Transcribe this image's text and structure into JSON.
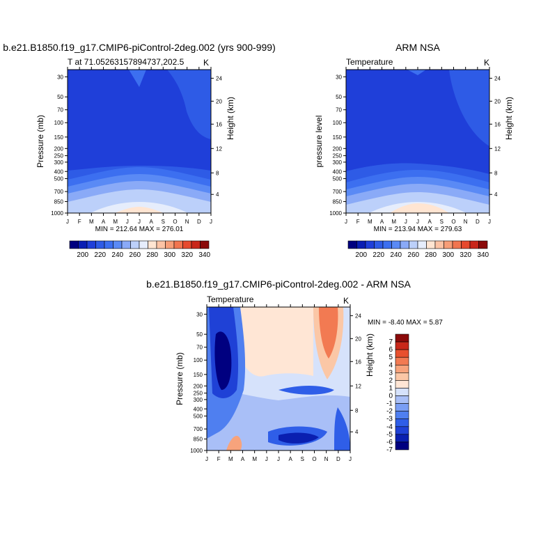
{
  "colors": {
    "abs_scale": [
      "#00007f",
      "#0a1eb3",
      "#1f3fd9",
      "#2e5be6",
      "#3c6ff0",
      "#5a8af5",
      "#8aaaf7",
      "#bcd0fa",
      "#e6edfc",
      "#ffe5d2",
      "#fcc3a5",
      "#f79e78",
      "#f17550",
      "#e64a2e",
      "#c9261a",
      "#8b0a0a"
    ],
    "diff_scale": [
      "#000080",
      "#0a1fb0",
      "#1f41d6",
      "#2f5ee8",
      "#4f7ff0",
      "#7a9ef4",
      "#a9bff7",
      "#d6e2fb",
      "#ffe6d5",
      "#fbc7a6",
      "#f7a37c",
      "#f27a52",
      "#e8502e",
      "#c9281a",
      "#8b0a0a"
    ]
  },
  "chart_data": [
    {
      "type": "heatmap",
      "name": "model",
      "title": "b.e21.B1850.f19_g17.CMIP6-piControl-2deg.002 (yrs 900-999)",
      "left_label": "T at 71.05263157894737,202.5",
      "right_label": "K",
      "ylabel": "Pressure (mb)",
      "ylabel_right": "Height (km)",
      "x_ticks": [
        "J",
        "F",
        "M",
        "A",
        "M",
        "J",
        "J",
        "A",
        "S",
        "O",
        "N",
        "D",
        "J"
      ],
      "y_ticks": [
        "30",
        "50",
        "70",
        "100",
        "150",
        "200",
        "250",
        "300",
        "400",
        "500",
        "700",
        "850",
        "1000"
      ],
      "y_right_ticks": [
        "24",
        "20",
        "16",
        "12",
        "8",
        "4"
      ],
      "stat_text": "MIN = 212.64 MAX = 276.01",
      "colorbar_ticks": [
        "200",
        "220",
        "240",
        "260",
        "280",
        "300",
        "320",
        "340"
      ]
    },
    {
      "type": "heatmap",
      "name": "obs",
      "title": "ARM NSA",
      "left_label": "Temperature",
      "right_label": "K",
      "ylabel": "pressure level",
      "ylabel_right": "Height (km)",
      "x_ticks": [
        "J",
        "F",
        "M",
        "A",
        "M",
        "J",
        "J",
        "A",
        "S",
        "O",
        "N",
        "D",
        "J"
      ],
      "y_ticks": [
        "30",
        "50",
        "70",
        "100",
        "150",
        "200",
        "250",
        "300",
        "400",
        "500",
        "700",
        "850",
        "1000"
      ],
      "y_right_ticks": [
        "24",
        "20",
        "16",
        "12",
        "8",
        "4"
      ],
      "stat_text": "MIN = 213.94 MAX = 279.63",
      "colorbar_ticks": [
        "200",
        "220",
        "240",
        "260",
        "280",
        "300",
        "320",
        "340"
      ]
    },
    {
      "type": "heatmap",
      "name": "diff",
      "title": "b.e21.B1850.f19_g17.CMIP6-piControl-2deg.002 - ARM NSA",
      "left_label": "Temperature",
      "right_label": "K",
      "ylabel": "Pressure (mb)",
      "ylabel_right": "Height (km)",
      "x_ticks": [
        "J",
        "F",
        "M",
        "A",
        "M",
        "J",
        "J",
        "A",
        "S",
        "O",
        "N",
        "D",
        "J"
      ],
      "y_ticks": [
        "30",
        "50",
        "70",
        "100",
        "150",
        "200",
        "250",
        "300",
        "400",
        "500",
        "700",
        "850",
        "1000"
      ],
      "y_right_ticks": [
        "24",
        "20",
        "16",
        "12",
        "8",
        "4"
      ],
      "stat_text": "MIN =  -8.40 MAX =   5.87",
      "colorbar_ticks": [
        "7",
        "6",
        "5",
        "4",
        "3",
        "2",
        "1",
        "0",
        "-1",
        "-2",
        "-3",
        "-4",
        "-5",
        "-6",
        "-7"
      ]
    }
  ]
}
